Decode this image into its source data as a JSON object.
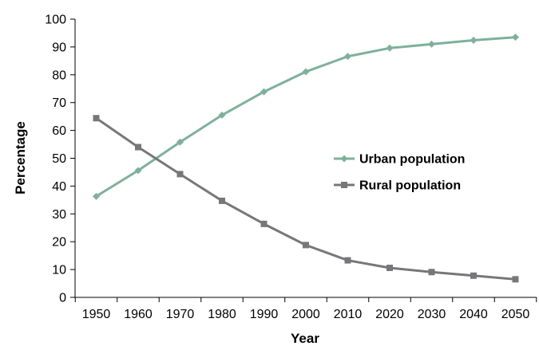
{
  "chart_data": {
    "type": "line",
    "title": "",
    "xlabel": "Year",
    "ylabel": "Percentage",
    "x": [
      1950,
      1960,
      1970,
      1980,
      1990,
      2000,
      2010,
      2020,
      2030,
      2040,
      2050
    ],
    "ylim": [
      0,
      100
    ],
    "yticks": [
      0,
      10,
      20,
      30,
      40,
      50,
      60,
      70,
      80,
      90,
      100
    ],
    "grid": false,
    "legend_position": "right",
    "series": [
      {
        "name": "Urban population",
        "marker": "diamond",
        "color": "#7fb09b",
        "values": [
          36.3,
          45.6,
          55.8,
          65.5,
          73.9,
          81.1,
          86.6,
          89.6,
          91.0,
          92.4,
          93.5
        ]
      },
      {
        "name": "Rural population",
        "marker": "square",
        "color": "#77777a",
        "values": [
          64.4,
          54.0,
          44.3,
          34.7,
          26.4,
          18.8,
          13.3,
          10.6,
          9.1,
          7.8,
          6.5
        ]
      }
    ]
  }
}
